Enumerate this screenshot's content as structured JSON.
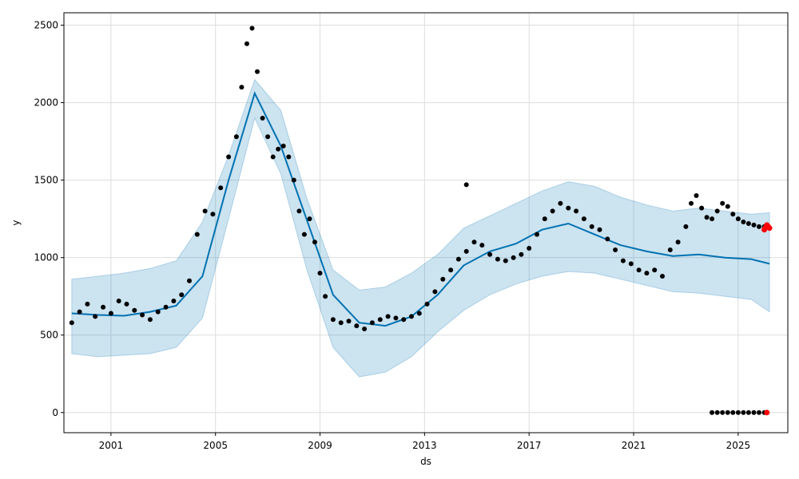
{
  "chart_data": {
    "type": "scatter",
    "title": "",
    "xlabel": "ds",
    "ylabel": "y",
    "xlim": [
      1999.2,
      2026.9
    ],
    "ylim": [
      -130,
      2580
    ],
    "grid": true,
    "x_ticks": [
      2001,
      2005,
      2009,
      2013,
      2017,
      2021,
      2025
    ],
    "y_ticks": [
      0,
      500,
      1000,
      1500,
      2000,
      2500
    ],
    "colors": {
      "observed": "#000000",
      "forecast": "#0072B2",
      "uncertainty": "#0072B2",
      "recent": "#ff0000",
      "grid": "#dddddd"
    },
    "forecast_line": {
      "x": [
        1999.5,
        2000.5,
        2001.5,
        2002.5,
        2003.5,
        2004.5,
        2005.5,
        2006.5,
        2007.5,
        2008.5,
        2009.5,
        2010.5,
        2011.5,
        2012.5,
        2013.5,
        2014.5,
        2015.5,
        2016.5,
        2017.5,
        2018.5,
        2019.5,
        2020.5,
        2021.5,
        2022.5,
        2023.5,
        2024.5,
        2025.5,
        2026.2
      ],
      "y": [
        640,
        630,
        625,
        650,
        690,
        880,
        1500,
        2060,
        1720,
        1240,
        760,
        580,
        560,
        620,
        760,
        950,
        1040,
        1090,
        1180,
        1220,
        1150,
        1080,
        1040,
        1010,
        1020,
        1000,
        990,
        960
      ]
    },
    "uncertainty_band": {
      "x": [
        1999.5,
        2000.5,
        2001.5,
        2002.5,
        2003.5,
        2004.5,
        2005.5,
        2006.5,
        2007.5,
        2008.5,
        2009.5,
        2010.5,
        2011.5,
        2012.5,
        2013.5,
        2014.5,
        2015.5,
        2016.5,
        2017.5,
        2018.5,
        2019.5,
        2020.5,
        2021.5,
        2022.5,
        2023.5,
        2024.5,
        2025.5,
        2026.2
      ],
      "upper": [
        860,
        880,
        900,
        930,
        980,
        1230,
        1660,
        2150,
        1950,
        1380,
        920,
        790,
        810,
        900,
        1020,
        1190,
        1270,
        1350,
        1430,
        1490,
        1460,
        1390,
        1340,
        1300,
        1320,
        1300,
        1280,
        1290
      ],
      "lower": [
        380,
        360,
        370,
        380,
        420,
        610,
        1250,
        1900,
        1540,
        920,
        420,
        230,
        260,
        360,
        520,
        660,
        760,
        830,
        880,
        910,
        900,
        860,
        820,
        780,
        770,
        750,
        730,
        650
      ]
    },
    "observed": {
      "x": [
        1999.5,
        1999.8,
        2000.1,
        2000.4,
        2000.7,
        2001.0,
        2001.3,
        2001.6,
        2001.9,
        2002.2,
        2002.5,
        2002.8,
        2003.1,
        2003.4,
        2003.7,
        2004.0,
        2004.3,
        2004.6,
        2004.9,
        2005.2,
        2005.5,
        2005.8,
        2006.0,
        2006.2,
        2006.4,
        2006.6,
        2006.8,
        2007.0,
        2007.2,
        2007.4,
        2007.6,
        2007.8,
        2008.0,
        2008.2,
        2008.4,
        2008.6,
        2008.8,
        2009.0,
        2009.2,
        2009.5,
        2009.8,
        2010.1,
        2010.4,
        2010.7,
        2011.0,
        2011.3,
        2011.6,
        2011.9,
        2012.2,
        2012.5,
        2012.8,
        2013.1,
        2013.4,
        2013.7,
        2014.0,
        2014.3,
        2014.6,
        2014.9,
        2015.2,
        2015.5,
        2015.8,
        2016.1,
        2016.4,
        2016.7,
        2017.0,
        2017.3,
        2017.6,
        2017.9,
        2018.2,
        2018.5,
        2018.8,
        2019.1,
        2019.4,
        2019.7,
        2020.0,
        2020.3,
        2020.6,
        2020.9,
        2021.2,
        2021.5,
        2021.8,
        2022.1,
        2022.4,
        2022.7,
        2023.0,
        2023.2,
        2023.4,
        2023.6,
        2023.8,
        2024.0,
        2024.2,
        2024.4,
        2024.6,
        2024.8,
        2025.0,
        2025.2,
        2025.4,
        2025.6,
        2025.8,
        2026.0
      ],
      "y": [
        580,
        650,
        700,
        620,
        680,
        640,
        720,
        700,
        660,
        630,
        600,
        650,
        680,
        720,
        760,
        850,
        1150,
        1300,
        1280,
        1450,
        1650,
        1780,
        2100,
        2380,
        2480,
        2200,
        1900,
        1780,
        1650,
        1700,
        1720,
        1650,
        1500,
        1300,
        1150,
        1250,
        1100,
        900,
        750,
        600,
        580,
        590,
        560,
        540,
        580,
        600,
        620,
        610,
        600,
        620,
        640,
        700,
        780,
        860,
        920,
        990,
        1040,
        1100,
        1080,
        1020,
        990,
        980,
        1000,
        1020,
        1060,
        1150,
        1250,
        1300,
        1350,
        1320,
        1300,
        1250,
        1200,
        1180,
        1120,
        1050,
        980,
        960,
        920,
        900,
        920,
        880,
        1050,
        1100,
        1200,
        1350,
        1400,
        1320,
        1260,
        1250,
        1300,
        1350,
        1330,
        1280,
        1250,
        1230,
        1220,
        1210,
        1200,
        1200
      ]
    },
    "outlier": {
      "x": [
        2014.6
      ],
      "y": [
        1470
      ]
    },
    "zero_series": {
      "x": [
        2024.0,
        2024.2,
        2024.4,
        2024.6,
        2024.8,
        2025.0,
        2025.2,
        2025.4,
        2025.6,
        2025.8,
        2026.0,
        2026.1
      ],
      "y": [
        0,
        0,
        0,
        0,
        0,
        0,
        0,
        0,
        0,
        0,
        0,
        0
      ]
    },
    "recent_points": {
      "x": [
        2026.0,
        2026.05,
        2026.1,
        2026.15,
        2026.2
      ],
      "y": [
        1180,
        1195,
        1210,
        1200,
        1190
      ]
    },
    "recent_zero_points": {
      "x": [
        2026.1
      ],
      "y": [
        0
      ]
    }
  }
}
